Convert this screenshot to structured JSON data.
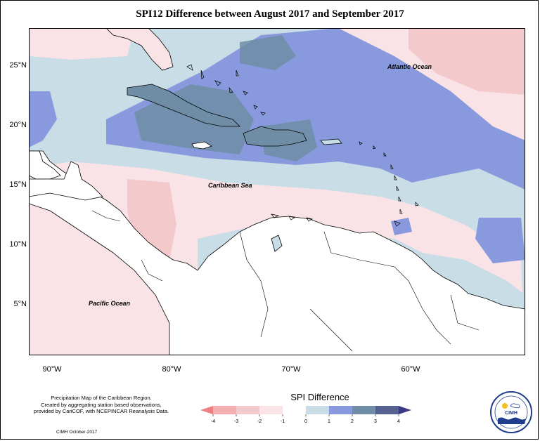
{
  "title": "SPI12 Difference between August 2017 and September 2017",
  "map": {
    "lat_labels": [
      "25°N",
      "20°N",
      "15°N",
      "10°N",
      "5°N"
    ],
    "lon_labels": [
      "90°W",
      "80°W",
      "70°W",
      "60°W"
    ],
    "ocean_labels": [
      "Atlantic Ocean",
      "Caribbean Sea",
      "Pacific Ocean"
    ]
  },
  "footer": {
    "description": [
      "Precipitation Map of the Caribbean Region.",
      "Created by aggregating station based observations,",
      "provided by CariCOF, with NCEPINCAR Reanalysis Data."
    ],
    "credit": "CIMH October-2017"
  },
  "legend": {
    "title": "SPI Difference",
    "ticks": [
      "-4",
      "-3",
      "-2",
      "-1",
      "0",
      "1",
      "2",
      "3",
      "4"
    ],
    "colors": [
      "#f07f84",
      "#f2aeb0",
      "#f3c9cc",
      "#f9e3e6",
      "#ffffff",
      "#c8dde6",
      "#8899dd",
      "#6f8ea5",
      "#566091",
      "#3d3a85"
    ]
  },
  "logo": {
    "text": "CIMH"
  }
}
